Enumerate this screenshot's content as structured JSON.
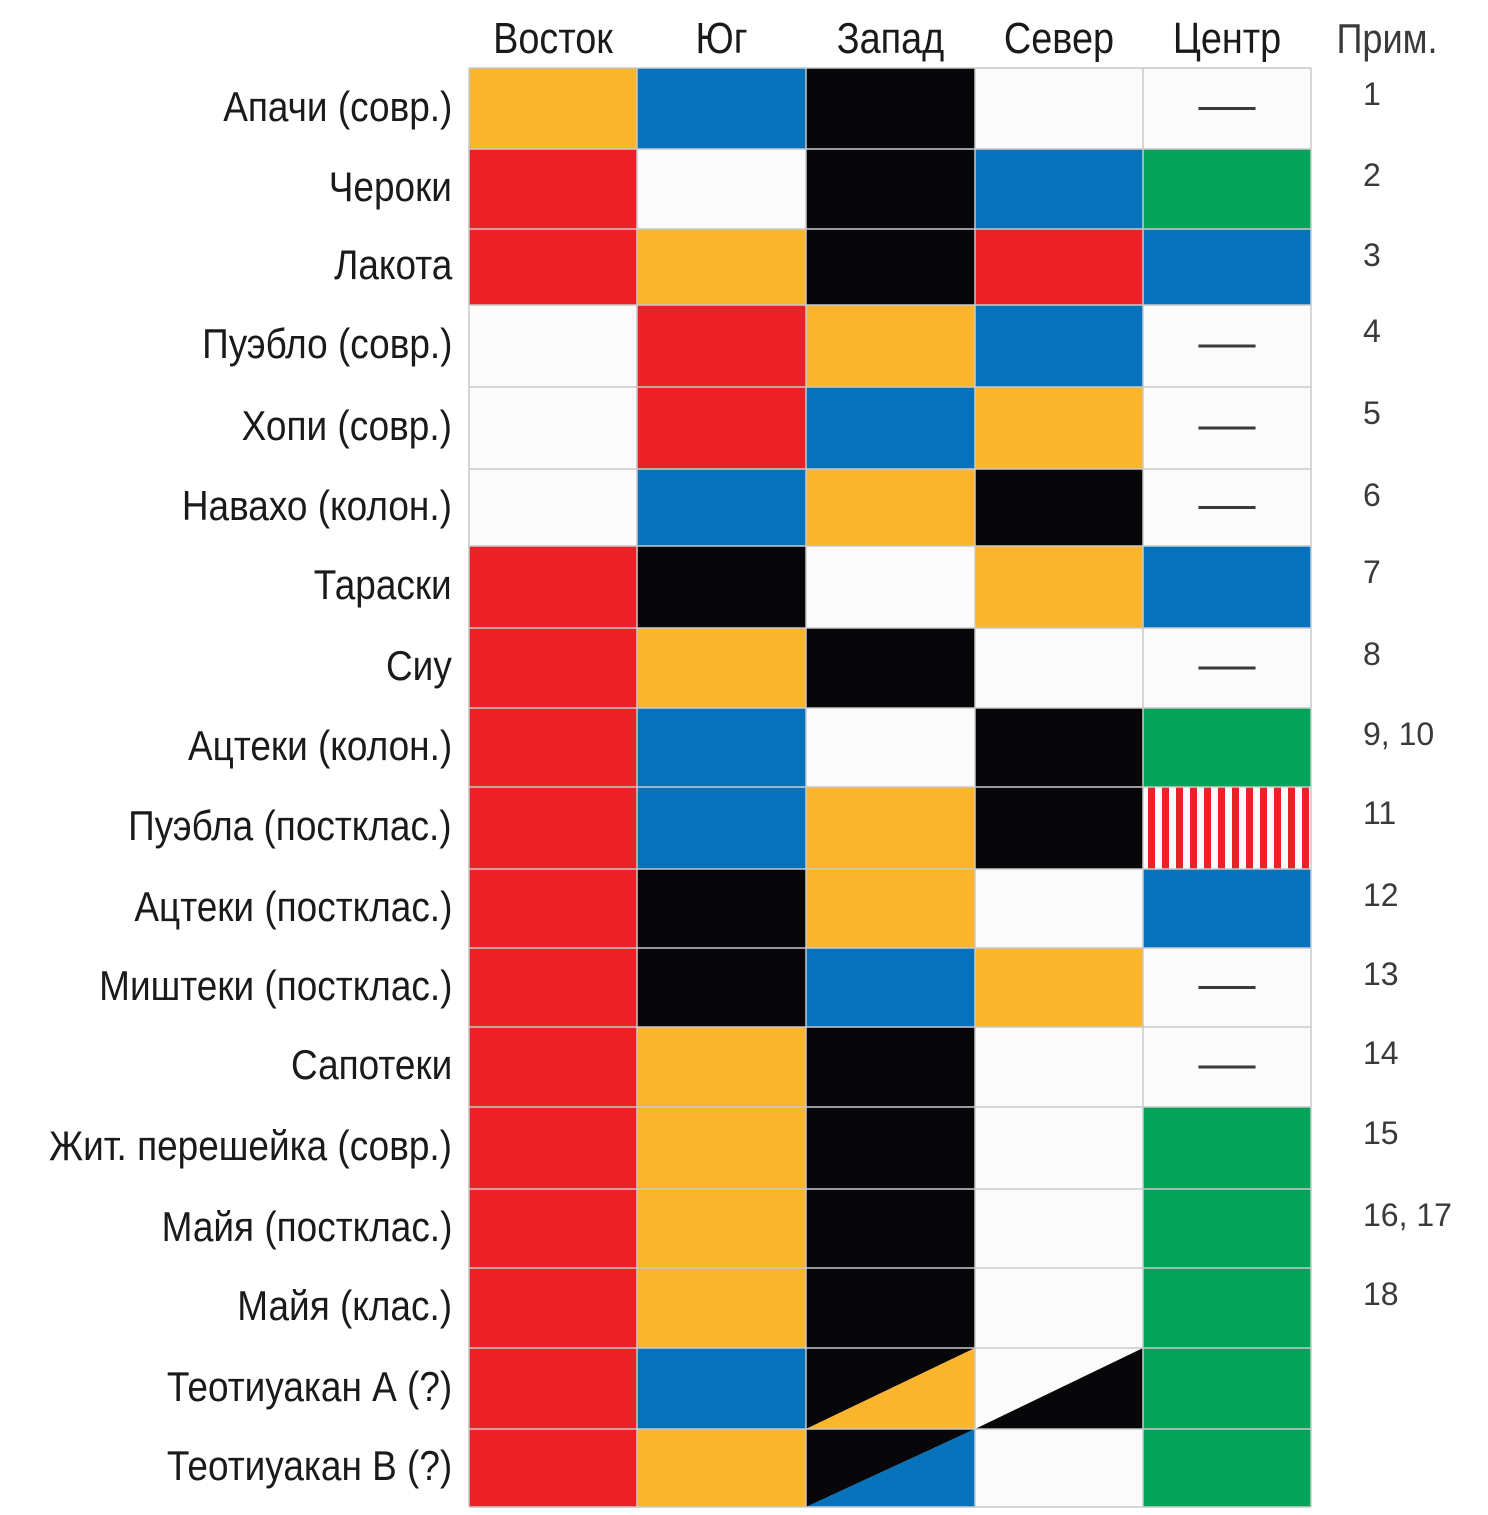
{
  "chart_data": {
    "type": "table",
    "columns": [
      "Восток",
      "Юг",
      "Запад",
      "Север",
      "Центр"
    ],
    "notes_header": "Прим.",
    "colors": {
      "R": "#ec2027",
      "Y": "#f9b52b",
      "B": "#0672bc",
      "K": "#07070a",
      "G": "#05a35a",
      "W": "#fafbfa"
    },
    "rows": [
      {
        "label": "Апачи (совр.)",
        "cells": [
          "Y",
          "B",
          "K",
          "W",
          "-"
        ],
        "note": "1"
      },
      {
        "label": "Чероки",
        "cells": [
          "R",
          "W",
          "K",
          "B",
          "G"
        ],
        "note": "2"
      },
      {
        "label": "Лакота",
        "cells": [
          "R",
          "Y",
          "K",
          "R",
          "B"
        ],
        "note": "3"
      },
      {
        "label": "Пуэбло (совр.)",
        "cells": [
          "W",
          "R",
          "Y",
          "B",
          "-"
        ],
        "note": "4"
      },
      {
        "label": "Хопи (совр.)",
        "cells": [
          "W",
          "R",
          "B",
          "Y",
          "-"
        ],
        "note": "5"
      },
      {
        "label": "Навахо (колон.)",
        "cells": [
          "W",
          "B",
          "Y",
          "K",
          "-"
        ],
        "note": "6"
      },
      {
        "label": "Тараски",
        "cells": [
          "R",
          "K",
          "W",
          "Y",
          "B"
        ],
        "note": "7"
      },
      {
        "label": "Сиу",
        "cells": [
          "R",
          "Y",
          "K",
          "W",
          "-"
        ],
        "note": "8"
      },
      {
        "label": "Ацтеки (колон.)",
        "cells": [
          "R",
          "B",
          "W",
          "K",
          "G"
        ],
        "note": "9, 10"
      },
      {
        "label": "Пуэбла (постклас.)",
        "cells": [
          "R",
          "B",
          "Y",
          "K",
          "RW-stripes"
        ],
        "note": "11"
      },
      {
        "label": "Ацтеки (постклас.)",
        "cells": [
          "R",
          "K",
          "Y",
          "W",
          "B"
        ],
        "note": "12"
      },
      {
        "label": "Миштеки (постклас.)",
        "cells": [
          "R",
          "K",
          "B",
          "Y",
          "-"
        ],
        "note": "13"
      },
      {
        "label": "Сапотеки",
        "cells": [
          "R",
          "Y",
          "K",
          "W",
          "-"
        ],
        "note": "14"
      },
      {
        "label": "Жит. перешейка (совр.)",
        "cells": [
          "R",
          "Y",
          "K",
          "W",
          "G"
        ],
        "note": "15"
      },
      {
        "label": "Майя (постклас.)",
        "cells": [
          "R",
          "Y",
          "K",
          "W",
          "G"
        ],
        "note": "16, 17"
      },
      {
        "label": "Майя (клас.)",
        "cells": [
          "R",
          "Y",
          "K",
          "W",
          "G"
        ],
        "note": "18"
      },
      {
        "label": "Теотиуакан А (?)",
        "cells": [
          "R",
          "B",
          "K/Y",
          "W/K",
          "G"
        ],
        "note": ""
      },
      {
        "label": "Теотиуакан В (?)",
        "cells": [
          "R",
          "Y",
          "K/B",
          "W",
          "G"
        ],
        "note": ""
      }
    ]
  }
}
